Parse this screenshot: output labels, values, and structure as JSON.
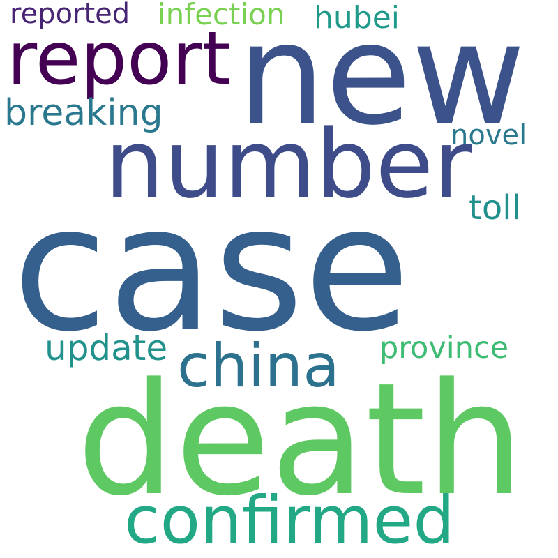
{
  "words": {
    "case": {
      "text": "case",
      "color": "#355f8d"
    },
    "death": {
      "text": "death",
      "color": "#5ec962"
    },
    "new": {
      "text": "new",
      "color": "#3b528b"
    },
    "number": {
      "text": "number",
      "color": "#3e4c8a"
    },
    "report": {
      "text": "report",
      "color": "#440154"
    },
    "confirmed": {
      "text": "confirmed",
      "color": "#22a884"
    },
    "china": {
      "text": "china",
      "color": "#2c728e"
    },
    "breaking": {
      "text": "breaking",
      "color": "#2a788e"
    },
    "update": {
      "text": "update",
      "color": "#21918c"
    },
    "province": {
      "text": "province",
      "color": "#3fbc73"
    },
    "reported": {
      "text": "reported",
      "color": "#482475"
    },
    "infection": {
      "text": "infection",
      "color": "#7ad151"
    },
    "hubei": {
      "text": "hubei",
      "color": "#1f9a8a"
    },
    "novel": {
      "text": "novel",
      "color": "#2a788e"
    },
    "toll": {
      "text": "toll",
      "color": "#21908d"
    }
  }
}
